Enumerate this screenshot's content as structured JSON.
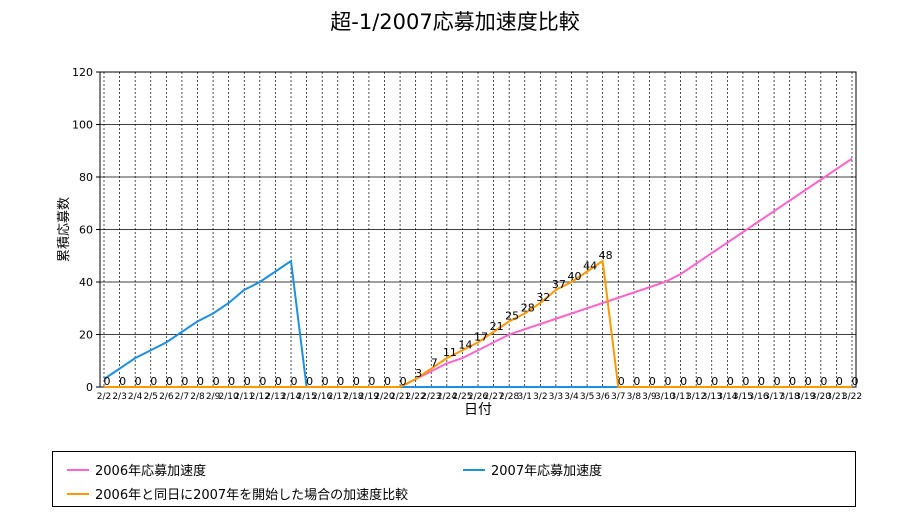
{
  "chart_data": {
    "type": "line",
    "title": "超-1/2007応募加速度比較",
    "xlabel": "日付",
    "ylabel": "累積応募数",
    "ylim": [
      0,
      120
    ],
    "yticks": [
      0,
      20,
      40,
      60,
      80,
      100,
      120
    ],
    "grid": true,
    "legend_position": "bottom",
    "categories": [
      "2/2",
      "2/3",
      "2/4",
      "2/5",
      "2/6",
      "2/7",
      "2/8",
      "2/9",
      "2/10",
      "2/11",
      "2/12",
      "2/13",
      "2/14",
      "2/15",
      "2/16",
      "2/17",
      "2/18",
      "2/19",
      "2/20",
      "2/21",
      "2/22",
      "2/23",
      "2/24",
      "2/25",
      "2/26",
      "2/27",
      "2/28",
      "3/1",
      "3/2",
      "3/3",
      "3/4",
      "3/5",
      "3/6",
      "3/7",
      "3/8",
      "3/9",
      "3/10",
      "3/11",
      "3/12",
      "3/13",
      "3/14",
      "3/15",
      "3/16",
      "3/17",
      "3/18",
      "3/19",
      "3/20",
      "3/21",
      "3/22"
    ],
    "series": [
      {
        "name": "2006年応募加速度",
        "color": "#ff66cc",
        "values": [
          0,
          0,
          0,
          0,
          0,
          0,
          0,
          0,
          0,
          0,
          0,
          0,
          0,
          0,
          0,
          0,
          0,
          0,
          0,
          0,
          3,
          6,
          9,
          11,
          14,
          17,
          20,
          22,
          24,
          26,
          28,
          30,
          32,
          34,
          36,
          38,
          40,
          43,
          47,
          51,
          55,
          59,
          63,
          67,
          71,
          75,
          79,
          83,
          87
        ]
      },
      {
        "name": "2007年応募加速度",
        "color": "#1f8fdf",
        "values": [
          3,
          7,
          11,
          14,
          17,
          21,
          25,
          28,
          32,
          37,
          40,
          44,
          48,
          0,
          0,
          0,
          0,
          0,
          0,
          0,
          0,
          0,
          0,
          0,
          0,
          0,
          0,
          0,
          0,
          0,
          0,
          0,
          0,
          0,
          0,
          0,
          0,
          0,
          0,
          0,
          0,
          0,
          0,
          0,
          0,
          0,
          0,
          0,
          0
        ]
      },
      {
        "name": "2006年と同日に2007年を開始した場合の加速度比較",
        "color": "#ff9900",
        "values": [
          0,
          0,
          0,
          0,
          0,
          0,
          0,
          0,
          0,
          0,
          0,
          0,
          0,
          0,
          0,
          0,
          0,
          0,
          0,
          0,
          3,
          7,
          11,
          14,
          17,
          21,
          25,
          28,
          32,
          37,
          40,
          44,
          48,
          0,
          0,
          0,
          0,
          0,
          0,
          0,
          0,
          0,
          0,
          0,
          0,
          0,
          0,
          0,
          0
        ]
      }
    ],
    "data_labels_text": [
      "0",
      "0",
      "0",
      "0",
      "0",
      "0",
      "0",
      "0",
      "0",
      "0",
      "0",
      "0",
      "0",
      "0",
      "0",
      "0",
      "0",
      "0",
      "0",
      "0",
      "3",
      "7",
      "11",
      "14",
      "17",
      "21",
      "25",
      "28",
      "32",
      "37",
      "40",
      "44",
      "48",
      "0",
      "0",
      "0",
      "0",
      "0",
      "0",
      "0",
      "0",
      "0",
      "0",
      "0",
      "0",
      "0",
      "0",
      "0",
      "0"
    ]
  },
  "legend": {
    "item1": "2006年応募加速度",
    "item2": "2007年応募加速度",
    "item3": "2006年と同日に2007年を開始した場合の加速度比較"
  }
}
